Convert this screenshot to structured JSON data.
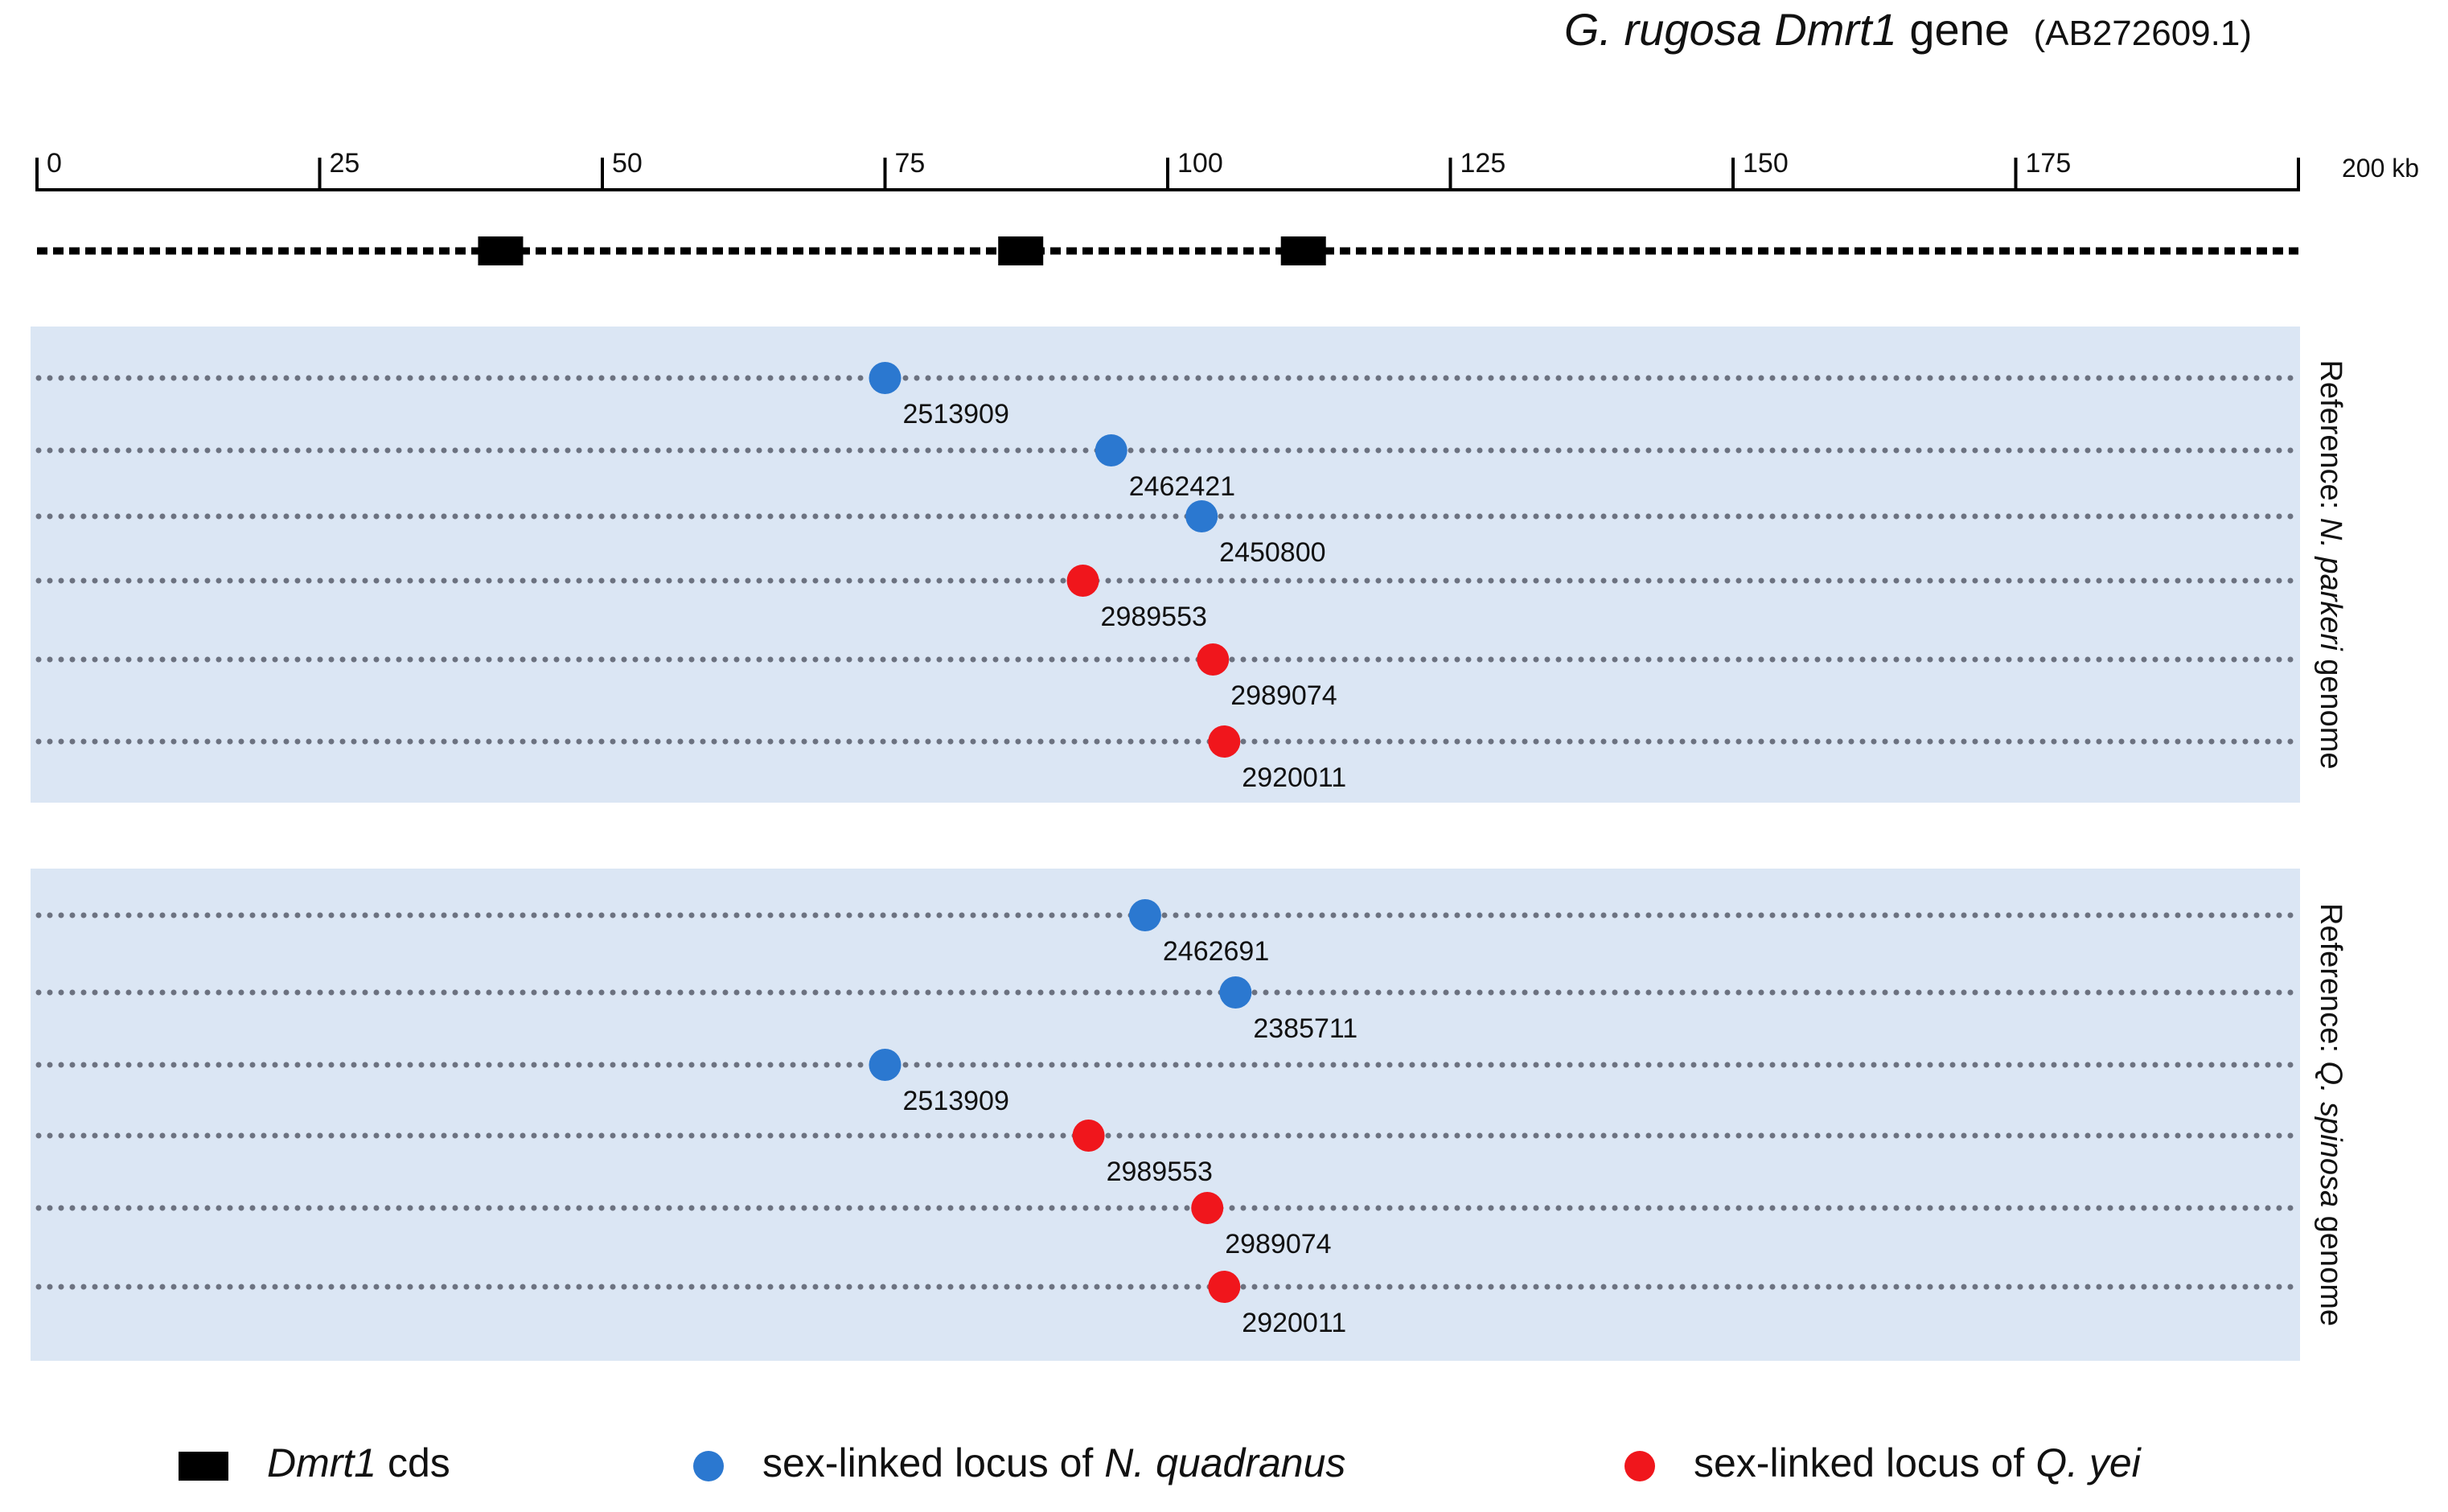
{
  "title": {
    "species": "G. rugosa",
    "gene": "Dmrt1",
    "word": "gene",
    "accession": "(AB272609.1)"
  },
  "scale": {
    "ticks": [
      0,
      25,
      50,
      75,
      100,
      125,
      150,
      175
    ],
    "end_label": "200 kb",
    "max": 200
  },
  "colors": {
    "blue": "#2b78d0",
    "red": "#f0161c",
    "panel": "#dbe6f4",
    "dotted": "#6c7280",
    "black": "#000000"
  },
  "chart_data": {
    "type": "scatter",
    "xlabel": "kb",
    "xlim": [
      0,
      200
    ],
    "gene_cds": [
      41,
      87,
      112
    ],
    "panels": [
      {
        "label_prefix": "Reference: ",
        "label_species": "N. parkeri",
        "label_suffix": " genome",
        "loci": [
          {
            "id": "2513909",
            "x": 75,
            "group": "blue"
          },
          {
            "id": "2462421",
            "x": 95,
            "group": "blue"
          },
          {
            "id": "2450800",
            "x": 103,
            "group": "blue"
          },
          {
            "id": "2989553",
            "x": 92.5,
            "group": "red"
          },
          {
            "id": "2989074",
            "x": 104,
            "group": "red"
          },
          {
            "id": "2920011",
            "x": 105,
            "group": "red"
          }
        ]
      },
      {
        "label_prefix": "Reference: ",
        "label_species": "Q. spinosa",
        "label_suffix": " genome",
        "loci": [
          {
            "id": "2462691",
            "x": 98,
            "group": "blue"
          },
          {
            "id": "2385711",
            "x": 106,
            "group": "blue"
          },
          {
            "id": "2513909",
            "x": 75,
            "group": "blue"
          },
          {
            "id": "2989553",
            "x": 93,
            "group": "red"
          },
          {
            "id": "2989074",
            "x": 103.5,
            "group": "red"
          },
          {
            "id": "2920011",
            "x": 105,
            "group": "red"
          }
        ]
      }
    ]
  },
  "legend": {
    "cds_italic": "Dmrt1",
    "cds_text": " cds",
    "blue_text": "sex-linked locus of ",
    "blue_species": "N. quadranus",
    "red_text": "sex-linked locus of ",
    "red_species": "Q. yei"
  }
}
